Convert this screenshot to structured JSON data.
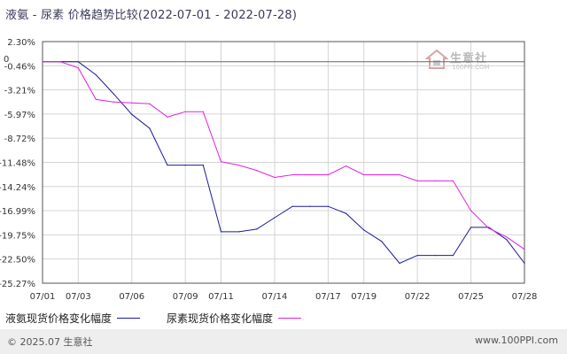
{
  "title": "液氨 - 尿素  价格趋势比较(2022-07-01 - 2022-07-28)",
  "watermark": {
    "name": "生意社",
    "url": "100PPI.COM"
  },
  "footer": {
    "left": "© 2025.07 生意社",
    "right": "www.100PPI.com"
  },
  "colors": {
    "series1": "#1a1a99",
    "series2": "#e020e0",
    "grid": "#d4d4d4",
    "axis": "#555555",
    "footer_bg": "#eeeeee"
  },
  "chart_data": {
    "type": "line",
    "title": "液氨 - 尿素  价格趋势比较(2022-07-01 - 2022-07-28)",
    "ylim": [
      -25.27,
      2.3
    ],
    "y_ticks": [
      "2.30%",
      "-0.46%",
      "-3.21%",
      "-5.97%",
      "-8.72%",
      "-11.48%",
      "-14.24%",
      "-16.99%",
      "-19.75%",
      "-22.50%",
      "-25.27%"
    ],
    "y_tick_values": [
      2.3,
      -0.46,
      -3.21,
      -5.97,
      -8.72,
      -11.48,
      -14.24,
      -16.99,
      -19.75,
      -22.5,
      -25.27
    ],
    "zero_label": "0",
    "x_ticks": [
      "07/01",
      "07/03",
      "07/06",
      "07/09",
      "07/11",
      "07/14",
      "07/17",
      "07/19",
      "07/22",
      "07/25",
      "07/28"
    ],
    "x": [
      "07/01",
      "07/02",
      "07/03",
      "07/04",
      "07/05",
      "07/06",
      "07/07",
      "07/08",
      "07/09",
      "07/10",
      "07/11",
      "07/12",
      "07/13",
      "07/14",
      "07/15",
      "07/16",
      "07/17",
      "07/18",
      "07/19",
      "07/20",
      "07/21",
      "07/22",
      "07/23",
      "07/24",
      "07/25",
      "07/26",
      "07/27",
      "07/28"
    ],
    "series": [
      {
        "name": "液氨现货价格变化幅度",
        "values": [
          0,
          0,
          0,
          -1.5,
          -3.7,
          -6.0,
          -7.6,
          -11.8,
          -11.8,
          -11.8,
          -19.4,
          -19.4,
          -19.1,
          -17.8,
          -16.5,
          -16.5,
          -16.5,
          -17.3,
          -19.2,
          -20.5,
          -23.0,
          -22.1,
          -22.1,
          -22.1,
          -18.9,
          -18.9,
          -20.3,
          -23.0
        ]
      },
      {
        "name": "尿素现货价格变化幅度",
        "values": [
          0,
          0,
          -0.7,
          -4.3,
          -4.6,
          -4.7,
          -4.8,
          -6.3,
          -5.7,
          -5.7,
          -11.4,
          -11.8,
          -12.4,
          -13.2,
          -12.9,
          -12.9,
          -12.9,
          -11.9,
          -12.9,
          -12.9,
          -12.9,
          -13.6,
          -13.6,
          -13.6,
          -17.0,
          -19.0,
          -20.0,
          -21.4
        ]
      }
    ],
    "grid": true,
    "legend_position": "bottom-left"
  }
}
